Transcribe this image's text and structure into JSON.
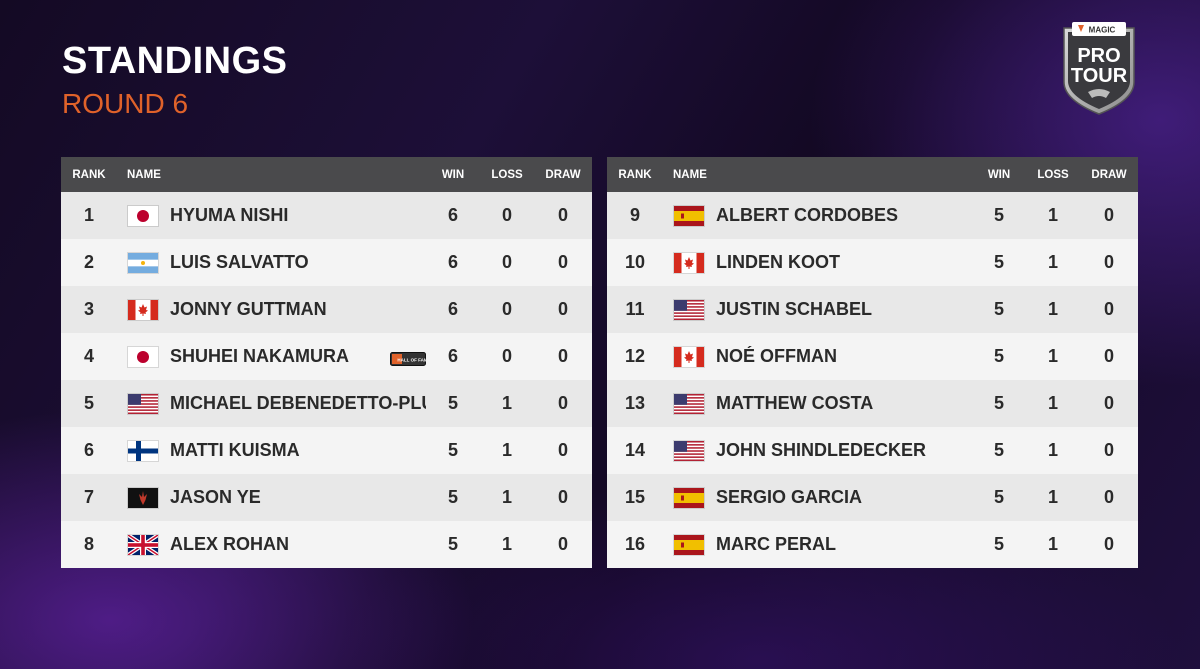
{
  "header": {
    "title": "STANDINGS",
    "subtitle": "ROUND 6"
  },
  "logo": {
    "top_text": "MAGIC",
    "line1": "PRO",
    "line2": "TOUR",
    "icon": "pro-tour-shield-logo"
  },
  "columns": {
    "rank": "RANK",
    "name": "NAME",
    "win": "WIN",
    "loss": "LOSS",
    "draw": "DRAW"
  },
  "badges": {
    "hall_of_fame": "HALL OF FAME"
  },
  "left_table": [
    {
      "rank": "1",
      "flag": "japan",
      "name": "HYUMA NISHI",
      "win": "6",
      "loss": "0",
      "draw": "0"
    },
    {
      "rank": "2",
      "flag": "argentina",
      "name": "LUIS SALVATTO",
      "win": "6",
      "loss": "0",
      "draw": "0"
    },
    {
      "rank": "3",
      "flag": "canada",
      "name": "JONNY GUTTMAN",
      "win": "6",
      "loss": "0",
      "draw": "0"
    },
    {
      "rank": "4",
      "flag": "japan",
      "name": "SHUHEI NAKAMURA",
      "win": "6",
      "loss": "0",
      "draw": "0",
      "badge": "hall-of-fame"
    },
    {
      "rank": "5",
      "flag": "usa",
      "name": "MICHAEL DEBENEDETTO-PLUN",
      "win": "5",
      "loss": "1",
      "draw": "0"
    },
    {
      "rank": "6",
      "flag": "finland",
      "name": "MATTI KUISMA",
      "win": "5",
      "loss": "1",
      "draw": "0"
    },
    {
      "rank": "7",
      "flag": "planeswalker",
      "name": "JASON YE",
      "win": "5",
      "loss": "1",
      "draw": "0"
    },
    {
      "rank": "8",
      "flag": "uk",
      "name": "ALEX ROHAN",
      "win": "5",
      "loss": "1",
      "draw": "0"
    }
  ],
  "right_table": [
    {
      "rank": "9",
      "flag": "spain",
      "name": "ALBERT CORDOBES",
      "win": "5",
      "loss": "1",
      "draw": "0"
    },
    {
      "rank": "10",
      "flag": "canada",
      "name": "LINDEN KOOT",
      "win": "5",
      "loss": "1",
      "draw": "0"
    },
    {
      "rank": "11",
      "flag": "usa",
      "name": "JUSTIN SCHABEL",
      "win": "5",
      "loss": "1",
      "draw": "0"
    },
    {
      "rank": "12",
      "flag": "canada",
      "name": "NOÉ OFFMAN",
      "win": "5",
      "loss": "1",
      "draw": "0"
    },
    {
      "rank": "13",
      "flag": "usa",
      "name": "MATTHEW COSTA",
      "win": "5",
      "loss": "1",
      "draw": "0"
    },
    {
      "rank": "14",
      "flag": "usa",
      "name": "JOHN SHINDLEDECKER",
      "win": "5",
      "loss": "1",
      "draw": "0"
    },
    {
      "rank": "15",
      "flag": "spain",
      "name": "SERGIO GARCIA",
      "win": "5",
      "loss": "1",
      "draw": "0"
    },
    {
      "rank": "16",
      "flag": "spain",
      "name": "MARC PERAL",
      "win": "5",
      "loss": "1",
      "draw": "0"
    }
  ],
  "colors": {
    "accent": "#e0622a",
    "header_bg": "#4a4a4c",
    "row_even": "#e8e8e8",
    "row_odd": "#f4f4f4"
  }
}
